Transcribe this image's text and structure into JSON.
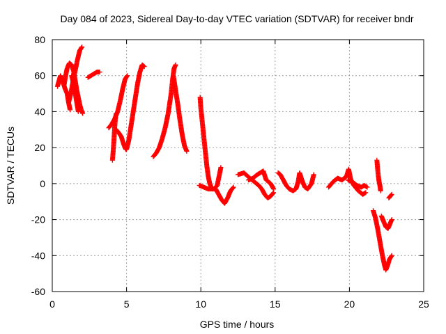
{
  "chart_data": {
    "type": "scatter",
    "title": "Day 084 of 2023, Sidereal Day-to-day VTEC variation (SDTVAR) for receiver bndr",
    "xlabel": "GPS time / hours",
    "ylabel": "SDTVAR / TECUs",
    "xlim": [
      0,
      25
    ],
    "ylim": [
      -60,
      80
    ],
    "xticks": [
      0,
      5,
      10,
      15,
      20,
      25
    ],
    "yticks": [
      -60,
      -40,
      -20,
      0,
      20,
      40,
      60,
      80
    ],
    "grid": true,
    "marker": "plus",
    "series_color": "#ff0000",
    "segments": [
      [
        [
          0.35,
          54
        ],
        [
          0.45,
          57
        ],
        [
          0.55,
          60
        ],
        [
          0.7,
          57
        ],
        [
          0.85,
          53
        ],
        [
          1.0,
          50
        ],
        [
          1.1,
          45
        ],
        [
          1.2,
          41
        ]
      ],
      [
        [
          0.8,
          55
        ],
        [
          0.9,
          60
        ],
        [
          1.0,
          64
        ],
        [
          1.15,
          67
        ],
        [
          1.3,
          66
        ],
        [
          1.45,
          62
        ],
        [
          1.55,
          57
        ],
        [
          1.65,
          52
        ],
        [
          1.75,
          48
        ],
        [
          1.85,
          44
        ],
        [
          1.95,
          41
        ],
        [
          2.05,
          39
        ]
      ],
      [
        [
          1.1,
          45
        ],
        [
          1.25,
          50
        ],
        [
          1.4,
          57
        ],
        [
          1.55,
          63
        ],
        [
          1.7,
          69
        ],
        [
          1.85,
          74
        ],
        [
          2.0,
          76
        ]
      ],
      [
        [
          1.3,
          60
        ],
        [
          1.45,
          55
        ],
        [
          1.55,
          50
        ],
        [
          1.65,
          45
        ],
        [
          1.75,
          40
        ]
      ],
      [
        [
          2.4,
          59
        ],
        [
          2.6,
          60
        ],
        [
          2.8,
          61
        ],
        [
          3.0,
          62
        ],
        [
          3.2,
          62
        ]
      ],
      [
        [
          3.8,
          31
        ],
        [
          4.0,
          33
        ],
        [
          4.2,
          36
        ],
        [
          4.4,
          40
        ],
        [
          4.6,
          47
        ],
        [
          4.75,
          53
        ],
        [
          4.9,
          58
        ],
        [
          5.05,
          60
        ]
      ],
      [
        [
          4.05,
          13
        ],
        [
          4.1,
          18
        ],
        [
          4.15,
          24
        ],
        [
          4.2,
          31
        ],
        [
          4.25,
          36
        ],
        [
          4.3,
          39
        ]
      ],
      [
        [
          4.3,
          30
        ],
        [
          4.5,
          28
        ],
        [
          4.65,
          26
        ],
        [
          4.8,
          22
        ],
        [
          4.95,
          19
        ]
      ],
      [
        [
          5.0,
          19
        ],
        [
          5.15,
          24
        ],
        [
          5.3,
          32
        ],
        [
          5.45,
          40
        ],
        [
          5.6,
          48
        ],
        [
          5.75,
          56
        ],
        [
          5.9,
          62
        ],
        [
          6.05,
          66
        ],
        [
          6.2,
          65
        ]
      ],
      [
        [
          6.8,
          15
        ],
        [
          7.0,
          17
        ],
        [
          7.2,
          20
        ],
        [
          7.4,
          25
        ],
        [
          7.6,
          31
        ],
        [
          7.8,
          39
        ],
        [
          8.0,
          50
        ],
        [
          8.1,
          58
        ],
        [
          8.2,
          64
        ],
        [
          8.3,
          66
        ]
      ],
      [
        [
          8.15,
          60
        ],
        [
          8.3,
          52
        ],
        [
          8.45,
          44
        ],
        [
          8.6,
          35
        ],
        [
          8.75,
          27
        ],
        [
          8.9,
          21
        ],
        [
          9.05,
          18
        ]
      ],
      [
        [
          9.95,
          48
        ],
        [
          10.0,
          42
        ],
        [
          10.1,
          34
        ],
        [
          10.2,
          26
        ],
        [
          10.3,
          18
        ],
        [
          10.4,
          10
        ],
        [
          10.5,
          4
        ],
        [
          10.6,
          0
        ],
        [
          10.7,
          -2
        ],
        [
          10.8,
          -3
        ]
      ],
      [
        [
          9.9,
          -1
        ],
        [
          10.2,
          -2
        ],
        [
          10.5,
          -3
        ],
        [
          10.9,
          -3
        ],
        [
          11.1,
          -1
        ],
        [
          11.25,
          5
        ],
        [
          11.35,
          9
        ]
      ],
      [
        [
          11.0,
          -3
        ],
        [
          11.2,
          -6
        ],
        [
          11.4,
          -9
        ],
        [
          11.6,
          -11
        ],
        [
          11.8,
          -8
        ],
        [
          12.0,
          -4
        ],
        [
          12.2,
          -2
        ]
      ],
      [
        [
          12.5,
          5
        ],
        [
          12.9,
          6
        ],
        [
          13.3,
          3
        ],
        [
          13.6,
          1
        ],
        [
          13.9,
          -1
        ],
        [
          14.1,
          -3
        ],
        [
          14.3,
          -6
        ],
        [
          14.5,
          -8
        ],
        [
          14.7,
          -7
        ],
        [
          14.9,
          -5
        ]
      ],
      [
        [
          13.2,
          2
        ],
        [
          13.5,
          3
        ],
        [
          13.8,
          5
        ],
        [
          14.0,
          6
        ],
        [
          14.2,
          7
        ],
        [
          14.4,
          2
        ],
        [
          14.7,
          0
        ],
        [
          14.9,
          -3
        ]
      ],
      [
        [
          15.2,
          6
        ],
        [
          15.35,
          5
        ],
        [
          15.55,
          2
        ],
        [
          15.75,
          -1
        ],
        [
          15.95,
          -3
        ],
        [
          16.2,
          -4
        ],
        [
          16.4,
          -3
        ],
        [
          16.55,
          1
        ],
        [
          16.65,
          6
        ],
        [
          16.8,
          2
        ],
        [
          17.0,
          -2
        ],
        [
          17.2,
          -3
        ],
        [
          17.45,
          0
        ],
        [
          17.6,
          5
        ]
      ],
      [
        [
          18.6,
          -2
        ],
        [
          18.9,
          1
        ],
        [
          19.2,
          3
        ],
        [
          19.5,
          2
        ],
        [
          19.8,
          4
        ],
        [
          19.95,
          8
        ],
        [
          20.1,
          2
        ],
        [
          20.3,
          -1
        ],
        [
          20.6,
          -4
        ],
        [
          20.9,
          -6
        ],
        [
          21.1,
          -5
        ]
      ],
      [
        [
          19.9,
          2
        ],
        [
          20.2,
          1
        ],
        [
          20.5,
          -1
        ],
        [
          20.8,
          -2
        ],
        [
          21.0,
          -1
        ],
        [
          21.2,
          -2
        ]
      ],
      [
        [
          21.6,
          -15
        ],
        [
          21.75,
          -19
        ],
        [
          21.9,
          -25
        ],
        [
          22.05,
          -32
        ],
        [
          22.2,
          -39
        ],
        [
          22.35,
          -45
        ],
        [
          22.45,
          -48
        ],
        [
          22.55,
          -46
        ],
        [
          22.7,
          -42
        ],
        [
          22.85,
          -40
        ]
      ],
      [
        [
          21.85,
          13
        ],
        [
          21.9,
          8
        ],
        [
          21.95,
          4
        ],
        [
          22.0,
          1
        ],
        [
          22.05,
          -1
        ],
        [
          22.1,
          -4
        ]
      ],
      [
        [
          22.15,
          -18
        ],
        [
          22.3,
          -21
        ],
        [
          22.45,
          -24
        ],
        [
          22.6,
          -25
        ],
        [
          22.75,
          -22
        ],
        [
          22.85,
          -20
        ]
      ],
      [
        [
          22.65,
          -8
        ],
        [
          22.75,
          -7
        ],
        [
          22.85,
          -6
        ]
      ]
    ]
  }
}
